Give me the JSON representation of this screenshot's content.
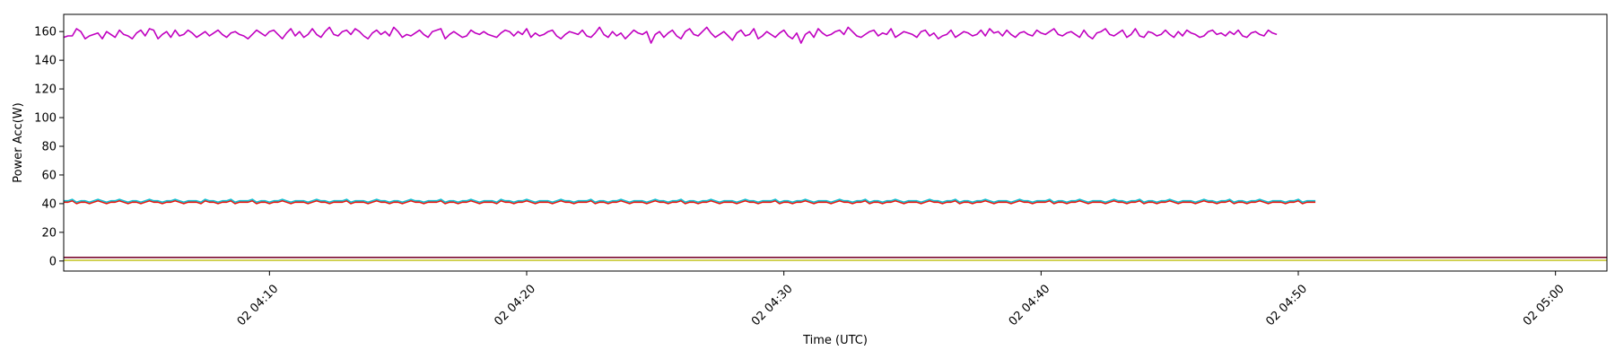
{
  "chart_data": {
    "type": "line",
    "title": "",
    "xlabel": "Time (UTC)",
    "ylabel": "Power Acc(W)",
    "x_range": [
      "02 04:02",
      "02 05:02"
    ],
    "ylim": [
      -7,
      172
    ],
    "x_tick_labels": [
      "02 04:10",
      "02 04:20",
      "02 04:30",
      "02 04:40",
      "02 04:50",
      "02 05:00"
    ],
    "y_tick_labels": [
      "0",
      "20",
      "40",
      "60",
      "80",
      "100",
      "120",
      "140",
      "160"
    ],
    "grid": false,
    "legend": "none",
    "x_sample_interval_seconds": 10,
    "series": [
      {
        "color": "#c000c0",
        "level_description": "~158 W, fluctuating 152-163",
        "values": [
          156,
          157,
          157,
          162,
          160,
          155,
          157,
          158,
          159,
          155,
          160,
          158,
          156,
          161,
          158,
          157,
          155,
          159,
          161,
          157,
          162,
          161,
          155,
          158,
          160,
          156,
          161,
          157,
          158,
          161,
          159,
          156,
          158,
          160,
          157,
          159,
          161,
          158,
          156,
          159,
          160,
          158,
          157,
          155,
          158,
          161,
          159,
          157,
          160,
          161,
          158,
          155,
          159,
          162,
          157,
          160,
          156,
          158,
          162,
          158,
          156,
          160,
          163,
          158,
          157,
          160,
          161,
          158,
          162,
          160,
          157,
          155,
          159,
          161,
          158,
          160,
          157,
          163,
          160,
          156,
          158,
          157,
          159,
          161,
          158,
          156,
          160,
          161,
          162,
          155,
          158,
          160,
          158,
          156,
          157,
          161,
          159,
          158,
          160,
          158,
          157,
          156,
          159,
          161,
          160,
          157,
          160,
          158,
          162,
          156,
          159,
          157,
          158,
          160,
          161,
          157,
          155,
          158,
          160,
          159,
          158,
          161,
          157,
          156,
          159,
          163,
          158,
          156,
          160,
          157,
          159,
          155,
          158,
          161,
          159,
          158,
          160,
          152,
          158,
          160,
          156,
          159,
          161,
          157,
          155,
          160,
          162,
          158,
          157,
          160,
          163,
          159,
          156,
          158,
          160,
          157,
          154,
          159,
          161,
          157,
          158,
          162,
          155,
          157,
          160,
          158,
          156,
          159,
          161,
          157,
          155,
          159,
          152,
          158,
          160,
          156,
          162,
          159,
          157,
          158,
          160,
          161,
          158,
          163,
          160,
          157,
          156,
          158,
          160,
          161,
          157,
          159,
          158,
          162,
          156,
          158,
          160,
          159,
          158,
          156,
          160,
          161,
          157,
          159,
          155,
          157,
          158,
          161,
          156,
          158,
          160,
          159,
          157,
          158,
          161,
          157,
          162,
          159,
          160,
          157,
          161,
          158,
          156,
          159,
          160,
          158,
          157,
          161,
          159,
          158,
          160,
          162,
          158,
          157,
          159,
          160,
          158,
          156,
          161,
          157,
          155,
          159,
          160,
          162,
          158,
          157,
          159,
          161,
          156,
          158,
          162,
          157,
          156,
          160,
          159,
          157,
          158,
          161,
          158,
          156,
          160,
          157,
          161,
          159,
          158,
          156,
          157,
          160,
          161,
          158,
          159,
          157,
          160,
          158,
          161,
          157,
          156,
          159,
          160,
          158,
          157,
          161,
          159,
          158
        ]
      },
      {
        "color": "#17becf",
        "level_description": "~42 W",
        "values": [
          42,
          42,
          43,
          41,
          42,
          42,
          41,
          42,
          43,
          42,
          41,
          42,
          42,
          43,
          42,
          41,
          42,
          42,
          41,
          42,
          43,
          42,
          42,
          41,
          42,
          42,
          43,
          42,
          41,
          42,
          42,
          42,
          41,
          43,
          42,
          42,
          41,
          42,
          42,
          43,
          41,
          42,
          42,
          42,
          43,
          41,
          42,
          42,
          41,
          42,
          42,
          43,
          42,
          41,
          42,
          42,
          42,
          41,
          42,
          43,
          42,
          42,
          41,
          42,
          42,
          42,
          43,
          41,
          42,
          42,
          42,
          41,
          42,
          43,
          42,
          42,
          41,
          42,
          42,
          41,
          42,
          43,
          42,
          42,
          41,
          42,
          42,
          42,
          43,
          41,
          42,
          42,
          41,
          42,
          42,
          43,
          42,
          41,
          42,
          42,
          42,
          41,
          43,
          42,
          42,
          41,
          42,
          42,
          43,
          42,
          41,
          42,
          42,
          42,
          41,
          42,
          43,
          42,
          42,
          41,
          42,
          42,
          42,
          43,
          41,
          42,
          42,
          41,
          42,
          42,
          43,
          42,
          41,
          42,
          42,
          42,
          41,
          42,
          43,
          42,
          42,
          41,
          42,
          42,
          43,
          41,
          42,
          42,
          41,
          42,
          42,
          43,
          42,
          41,
          42,
          42,
          42,
          41,
          42,
          43,
          42,
          42,
          41,
          42,
          42,
          42,
          43,
          41,
          42,
          42,
          41,
          42,
          42,
          43,
          42,
          41,
          42,
          42,
          42,
          41,
          42,
          43,
          42,
          42,
          41,
          42,
          42,
          43,
          41,
          42,
          42,
          41,
          42,
          42,
          43,
          42,
          41,
          42,
          42,
          42,
          41,
          42,
          43,
          42,
          42,
          41,
          42,
          42,
          43,
          41,
          42,
          42,
          41,
          42,
          42,
          43,
          42,
          41,
          42,
          42,
          42,
          41,
          42,
          43,
          42,
          42,
          41,
          42,
          42,
          42,
          43,
          41,
          42,
          42,
          41,
          42,
          42,
          43,
          42,
          41,
          42,
          42,
          42,
          41,
          42,
          43,
          42,
          42,
          41,
          42,
          42,
          43,
          41,
          42,
          42,
          41,
          42,
          42,
          43,
          42,
          41,
          42,
          42,
          42,
          41,
          42,
          43,
          42,
          42,
          41,
          42,
          42,
          43,
          41,
          42,
          42,
          41,
          42,
          42,
          43,
          42,
          41,
          42,
          42,
          42,
          41,
          42,
          42,
          43,
          41,
          42,
          42,
          42
        ]
      },
      {
        "color": "#e8150c",
        "level_description": "~41 W",
        "values": [
          41,
          41,
          42,
          40,
          41,
          41,
          40,
          41,
          42,
          41,
          40,
          41,
          41,
          42,
          41,
          40,
          41,
          41,
          40,
          41,
          42,
          41,
          41,
          40,
          41,
          41,
          42,
          41,
          40,
          41,
          41,
          41,
          40,
          42,
          41,
          41,
          40,
          41,
          41,
          42,
          40,
          41,
          41,
          41,
          42,
          40,
          41,
          41,
          40,
          41,
          41,
          42,
          41,
          40,
          41,
          41,
          41,
          40,
          41,
          42,
          41,
          41,
          40,
          41,
          41,
          41,
          42,
          40,
          41,
          41,
          41,
          40,
          41,
          42,
          41,
          41,
          40,
          41,
          41,
          40,
          41,
          42,
          41,
          41,
          40,
          41,
          41,
          41,
          42,
          40,
          41,
          41,
          40,
          41,
          41,
          42,
          41,
          40,
          41,
          41,
          41,
          40,
          42,
          41,
          41,
          40,
          41,
          41,
          42,
          41,
          40,
          41,
          41,
          41,
          40,
          41,
          42,
          41,
          41,
          40,
          41,
          41,
          41,
          42,
          40,
          41,
          41,
          40,
          41,
          41,
          42,
          41,
          40,
          41,
          41,
          41,
          40,
          41,
          42,
          41,
          41,
          40,
          41,
          41,
          42,
          40,
          41,
          41,
          40,
          41,
          41,
          42,
          41,
          40,
          41,
          41,
          41,
          40,
          41,
          42,
          41,
          41,
          40,
          41,
          41,
          41,
          42,
          40,
          41,
          41,
          40,
          41,
          41,
          42,
          41,
          40,
          41,
          41,
          41,
          40,
          41,
          42,
          41,
          41,
          40,
          41,
          41,
          42,
          40,
          41,
          41,
          40,
          41,
          41,
          42,
          41,
          40,
          41,
          41,
          41,
          40,
          41,
          42,
          41,
          41,
          40,
          41,
          41,
          42,
          40,
          41,
          41,
          40,
          41,
          41,
          42,
          41,
          40,
          41,
          41,
          41,
          40,
          41,
          42,
          41,
          41,
          40,
          41,
          41,
          41,
          42,
          40,
          41,
          41,
          40,
          41,
          41,
          42,
          41,
          40,
          41,
          41,
          41,
          40,
          41,
          42,
          41,
          41,
          40,
          41,
          41,
          42,
          40,
          41,
          41,
          40,
          41,
          41,
          42,
          41,
          40,
          41,
          41,
          41,
          40,
          41,
          42,
          41,
          41,
          40,
          41,
          41,
          42,
          40,
          41,
          41,
          40,
          41,
          41,
          42,
          41,
          40,
          41,
          41,
          41,
          40,
          41,
          41,
          42,
          40,
          41,
          41,
          41
        ]
      },
      {
        "color": "#7a0a2e",
        "level_description": "~2.5 W",
        "constant": 2.5
      },
      {
        "color": "#c8c832",
        "level_description": "~0.5 W",
        "constant": 0.5
      }
    ]
  }
}
